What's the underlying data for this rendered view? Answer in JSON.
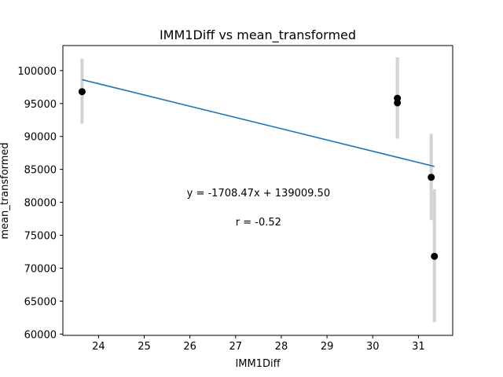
{
  "chart_data": {
    "type": "scatter",
    "title": "IMM1Diff vs mean_transformed",
    "xlabel": "IMM1Diff",
    "ylabel": "mean_transformed",
    "xlim": [
      23.22,
      31.75
    ],
    "ylim": [
      59800,
      103800
    ],
    "xticks": [
      24,
      25,
      26,
      27,
      28,
      29,
      30,
      31
    ],
    "yticks": [
      60000,
      65000,
      70000,
      75000,
      80000,
      85000,
      90000,
      95000,
      100000
    ],
    "grid": false,
    "points": [
      {
        "x": 23.64,
        "y": 96800,
        "err_low": 91900,
        "err_high": 101800
      },
      {
        "x": 30.54,
        "y": 95800,
        "err_low": 89700,
        "err_high": 102000
      },
      {
        "x": 30.54,
        "y": 95100,
        "err_low": 89700,
        "err_high": 102000
      },
      {
        "x": 31.28,
        "y": 83800,
        "err_low": 77300,
        "err_high": 90400
      },
      {
        "x": 31.35,
        "y": 71800,
        "err_low": 61800,
        "err_high": 82000
      }
    ],
    "fit_line": {
      "slope": -1708.47,
      "intercept": 139009.5,
      "x_start": 23.64,
      "x_end": 31.35
    },
    "annotations": {
      "equation": "y = -1708.47x + 139009.50",
      "r_text": "r = -0.52",
      "equation_pos": {
        "x": 27.5,
        "y": 81500
      },
      "r_pos": {
        "x": 27.5,
        "y": 77100
      }
    },
    "colors": {
      "points": "#000000",
      "line": "#1f77b4",
      "errorbars": "#d3d3d3"
    }
  }
}
